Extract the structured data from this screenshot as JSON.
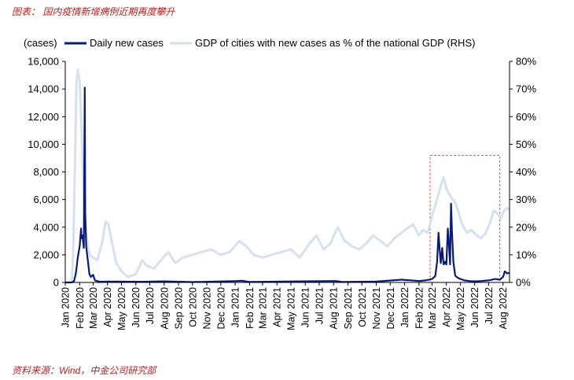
{
  "figure": {
    "title": "图表： 国内疫情新增病例近期再度攀升",
    "source": "资料来源：Wind，中金公司研究部"
  },
  "colors": {
    "cases": "#0a1a7a",
    "gdp": "#d5e1ee",
    "highlight_box": "#e0504a",
    "caption": "#b22222"
  },
  "chart_data": {
    "type": "line",
    "title": "",
    "left_axis_unit": "(cases)",
    "ylim": [
      0,
      16000
    ],
    "y_ticks": [
      "0",
      "2,000",
      "4,000",
      "6,000",
      "8,000",
      "10,000",
      "12,000",
      "14,000",
      "16,000"
    ],
    "ylim_right": [
      0,
      80
    ],
    "y_ticks_right": [
      "0%",
      "10%",
      "20%",
      "30%",
      "40%",
      "50%",
      "60%",
      "70%",
      "80%"
    ],
    "x_range": [
      "2020-01-01",
      "2022-08-15"
    ],
    "x_ticks": [
      "Jan 2020",
      "Feb 2020",
      "Mar 2020",
      "Apr 2020",
      "May 2020",
      "Jun 2020",
      "Jul 2020",
      "Aug 2020",
      "Sep 2020",
      "Oct 2020",
      "Nov 2020",
      "Dec 2020",
      "Jan 2021",
      "Feb 2021",
      "Mar 2021",
      "Apr 2021",
      "May 2021",
      "Jun 2021",
      "Jul 2021",
      "Aug 2021",
      "Sep 2021",
      "Oct 2021",
      "Nov 2021",
      "Dec 2021",
      "Jan 2022",
      "Feb 2022",
      "Mar 2022",
      "Apr 2022",
      "May 2022",
      "Jun 2022",
      "Jul 2022",
      "Aug 2022"
    ],
    "legend_position": "top",
    "grid": false,
    "highlight_box": {
      "x_start": "2022-02-25",
      "x_end": "2022-07-25",
      "y_top_right_axis": 46
    },
    "series": [
      {
        "name": "Daily new cases",
        "axis": "left",
        "points": [
          [
            "2020-01-01",
            0
          ],
          [
            "2020-01-15",
            0
          ],
          [
            "2020-01-20",
            100
          ],
          [
            "2020-01-24",
            700
          ],
          [
            "2020-01-28",
            1800
          ],
          [
            "2020-02-01",
            2600
          ],
          [
            "2020-02-04",
            3900
          ],
          [
            "2020-02-05",
            3200
          ],
          [
            "2020-02-07",
            3400
          ],
          [
            "2020-02-10",
            2500
          ],
          [
            "2020-02-12",
            14100
          ],
          [
            "2020-02-13",
            5000
          ],
          [
            "2020-02-15",
            2600
          ],
          [
            "2020-02-18",
            1800
          ],
          [
            "2020-02-22",
            600
          ],
          [
            "2020-02-25",
            400
          ],
          [
            "2020-03-01",
            550
          ],
          [
            "2020-03-05",
            150
          ],
          [
            "2020-03-15",
            50
          ],
          [
            "2020-04-01",
            60
          ],
          [
            "2020-06-15",
            50
          ],
          [
            "2020-08-01",
            80
          ],
          [
            "2020-10-01",
            30
          ],
          [
            "2021-01-05",
            100
          ],
          [
            "2021-01-15",
            120
          ],
          [
            "2021-02-01",
            40
          ],
          [
            "2021-08-05",
            100
          ],
          [
            "2021-08-20",
            40
          ],
          [
            "2021-11-01",
            60
          ],
          [
            "2021-12-25",
            200
          ],
          [
            "2022-01-15",
            150
          ],
          [
            "2022-02-01",
            100
          ],
          [
            "2022-02-15",
            150
          ],
          [
            "2022-03-01",
            250
          ],
          [
            "2022-03-08",
            450
          ],
          [
            "2022-03-12",
            1500
          ],
          [
            "2022-03-15",
            3600
          ],
          [
            "2022-03-18",
            2200
          ],
          [
            "2022-03-20",
            1400
          ],
          [
            "2022-03-23",
            2500
          ],
          [
            "2022-03-26",
            1300
          ],
          [
            "2022-03-29",
            1500
          ],
          [
            "2022-04-01",
            1300
          ],
          [
            "2022-04-04",
            3900
          ],
          [
            "2022-04-06",
            3000
          ],
          [
            "2022-04-09",
            1300
          ],
          [
            "2022-04-11",
            5700
          ],
          [
            "2022-04-13",
            3700
          ],
          [
            "2022-04-16",
            1500
          ],
          [
            "2022-04-20",
            500
          ],
          [
            "2022-04-25",
            350
          ],
          [
            "2022-05-01",
            250
          ],
          [
            "2022-05-10",
            150
          ],
          [
            "2022-05-20",
            100
          ],
          [
            "2022-06-01",
            80
          ],
          [
            "2022-06-15",
            100
          ],
          [
            "2022-07-01",
            150
          ],
          [
            "2022-07-15",
            250
          ],
          [
            "2022-07-25",
            200
          ],
          [
            "2022-08-01",
            400
          ],
          [
            "2022-08-05",
            800
          ],
          [
            "2022-08-10",
            650
          ],
          [
            "2022-08-15",
            700
          ]
        ]
      },
      {
        "name": "GDP of cities with new cases as % of the national GDP (RHS)",
        "axis": "right",
        "points": [
          [
            "2020-01-15",
            0
          ],
          [
            "2020-01-18",
            10
          ],
          [
            "2020-01-21",
            35
          ],
          [
            "2020-01-25",
            72
          ],
          [
            "2020-01-28",
            77
          ],
          [
            "2020-02-01",
            73
          ],
          [
            "2020-02-05",
            55
          ],
          [
            "2020-02-10",
            30
          ],
          [
            "2020-02-15",
            18
          ],
          [
            "2020-02-22",
            10
          ],
          [
            "2020-03-01",
            9
          ],
          [
            "2020-03-10",
            8
          ],
          [
            "2020-03-20",
            14
          ],
          [
            "2020-03-28",
            22
          ],
          [
            "2020-04-03",
            21
          ],
          [
            "2020-04-10",
            15
          ],
          [
            "2020-04-20",
            7
          ],
          [
            "2020-05-01",
            4
          ],
          [
            "2020-05-15",
            2
          ],
          [
            "2020-06-01",
            3
          ],
          [
            "2020-06-15",
            8
          ],
          [
            "2020-06-25",
            6
          ],
          [
            "2020-07-10",
            5
          ],
          [
            "2020-07-25",
            8
          ],
          [
            "2020-08-10",
            11
          ],
          [
            "2020-08-25",
            7
          ],
          [
            "2020-09-10",
            9
          ],
          [
            "2020-10-01",
            10
          ],
          [
            "2020-10-20",
            11
          ],
          [
            "2020-11-10",
            12
          ],
          [
            "2020-12-01",
            10
          ],
          [
            "2020-12-20",
            11
          ],
          [
            "2021-01-10",
            15
          ],
          [
            "2021-01-25",
            13
          ],
          [
            "2021-02-10",
            10
          ],
          [
            "2021-03-01",
            9
          ],
          [
            "2021-03-20",
            10
          ],
          [
            "2021-04-10",
            11
          ],
          [
            "2021-05-01",
            12
          ],
          [
            "2021-05-20",
            9
          ],
          [
            "2021-06-10",
            14
          ],
          [
            "2021-06-25",
            17
          ],
          [
            "2021-07-10",
            12
          ],
          [
            "2021-07-25",
            14
          ],
          [
            "2021-08-10",
            20
          ],
          [
            "2021-08-25",
            15
          ],
          [
            "2021-09-10",
            13
          ],
          [
            "2021-09-25",
            12
          ],
          [
            "2021-10-10",
            14
          ],
          [
            "2021-10-25",
            17
          ],
          [
            "2021-11-10",
            15
          ],
          [
            "2021-11-25",
            13
          ],
          [
            "2021-12-10",
            16
          ],
          [
            "2021-12-25",
            18
          ],
          [
            "2022-01-10",
            20
          ],
          [
            "2022-01-20",
            21
          ],
          [
            "2022-01-31",
            17
          ],
          [
            "2022-02-10",
            19
          ],
          [
            "2022-02-20",
            18
          ],
          [
            "2022-03-01",
            24
          ],
          [
            "2022-03-10",
            29
          ],
          [
            "2022-03-20",
            35
          ],
          [
            "2022-03-26",
            38
          ],
          [
            "2022-04-01",
            34
          ],
          [
            "2022-04-10",
            31
          ],
          [
            "2022-04-20",
            29
          ],
          [
            "2022-04-28",
            25
          ],
          [
            "2022-05-05",
            21
          ],
          [
            "2022-05-15",
            18
          ],
          [
            "2022-05-25",
            19
          ],
          [
            "2022-06-05",
            17
          ],
          [
            "2022-06-15",
            16
          ],
          [
            "2022-06-25",
            18
          ],
          [
            "2022-07-05",
            22
          ],
          [
            "2022-07-12",
            26
          ],
          [
            "2022-07-20",
            25
          ],
          [
            "2022-07-27",
            23
          ],
          [
            "2022-08-03",
            26
          ],
          [
            "2022-08-10",
            27
          ],
          [
            "2022-08-15",
            26
          ]
        ]
      }
    ]
  }
}
